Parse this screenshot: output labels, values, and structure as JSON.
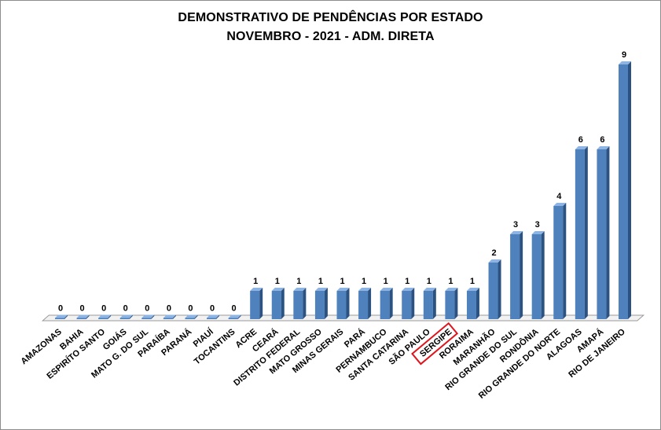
{
  "chart_data": {
    "type": "bar",
    "title_lines": [
      "DEMONSTRATIVO DE PENDÊNCIAS POR ESTADO",
      "NOVEMBRO - 2021 - ADM. DIRETA"
    ],
    "categories": [
      "AMAZONAS",
      "BAHIA",
      "ESPIRÍTO SANTO",
      "GOIÁS",
      "MATO G. DO SUL",
      "PARAÍBA",
      "PARANÁ",
      "PIAUÍ",
      "TOCANTINS",
      "ACRE",
      "CEARÁ",
      "DISTRITO FEDERAL",
      "MATO GROSSO",
      "MINAS GERAIS",
      "PARÁ",
      "PERNAMBUCO",
      "SANTA CATARINA",
      "SÃO PAULO",
      "SERGIPE",
      "RORAIMA",
      "MARANHÃO",
      "RIO GRANDE DO SUL",
      "RONDÔNIA",
      "RIO GRANDE DO NORTE",
      "ALAGOAS",
      "AMAPÁ",
      "RIO DE JANEIRO"
    ],
    "values": [
      0,
      0,
      0,
      0,
      0,
      0,
      0,
      0,
      0,
      1,
      1,
      1,
      1,
      1,
      1,
      1,
      1,
      1,
      1,
      1,
      2,
      3,
      3,
      4,
      6,
      6,
      9
    ],
    "ylim": [
      0,
      9
    ],
    "grid": false,
    "legend": "none",
    "highlighted_category": "SERGIPE",
    "colors": {
      "bar_front": "#4f81bd",
      "bar_side": "#2c5282",
      "bar_top": "#8eb4e3",
      "highlight_box": "#e0141c"
    }
  }
}
